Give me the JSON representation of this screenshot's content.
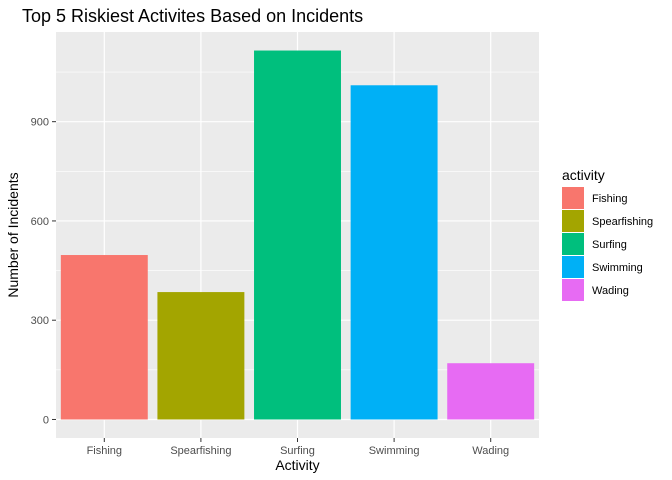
{
  "chart_data": {
    "type": "bar",
    "title": "Top 5 Riskiest Activites Based on Incidents",
    "xlabel": "Activity",
    "ylabel": "Number of Incidents",
    "categories": [
      "Fishing",
      "Spearfishing",
      "Surfing",
      "Swimming",
      "Wading"
    ],
    "values": [
      497,
      385,
      1115,
      1010,
      170
    ],
    "colors": [
      "#F8766D",
      "#A3A500",
      "#00BF7D",
      "#00B0F6",
      "#E76BF3"
    ],
    "yticks": [
      0,
      300,
      600,
      900
    ],
    "ylim": [
      -56,
      1171
    ],
    "grid": true,
    "panel_background": "#EBEBEB",
    "legend": {
      "title": "activity",
      "placement": "right",
      "entries": [
        "Fishing",
        "Spearfishing",
        "Surfing",
        "Swimming",
        "Wading"
      ]
    }
  }
}
